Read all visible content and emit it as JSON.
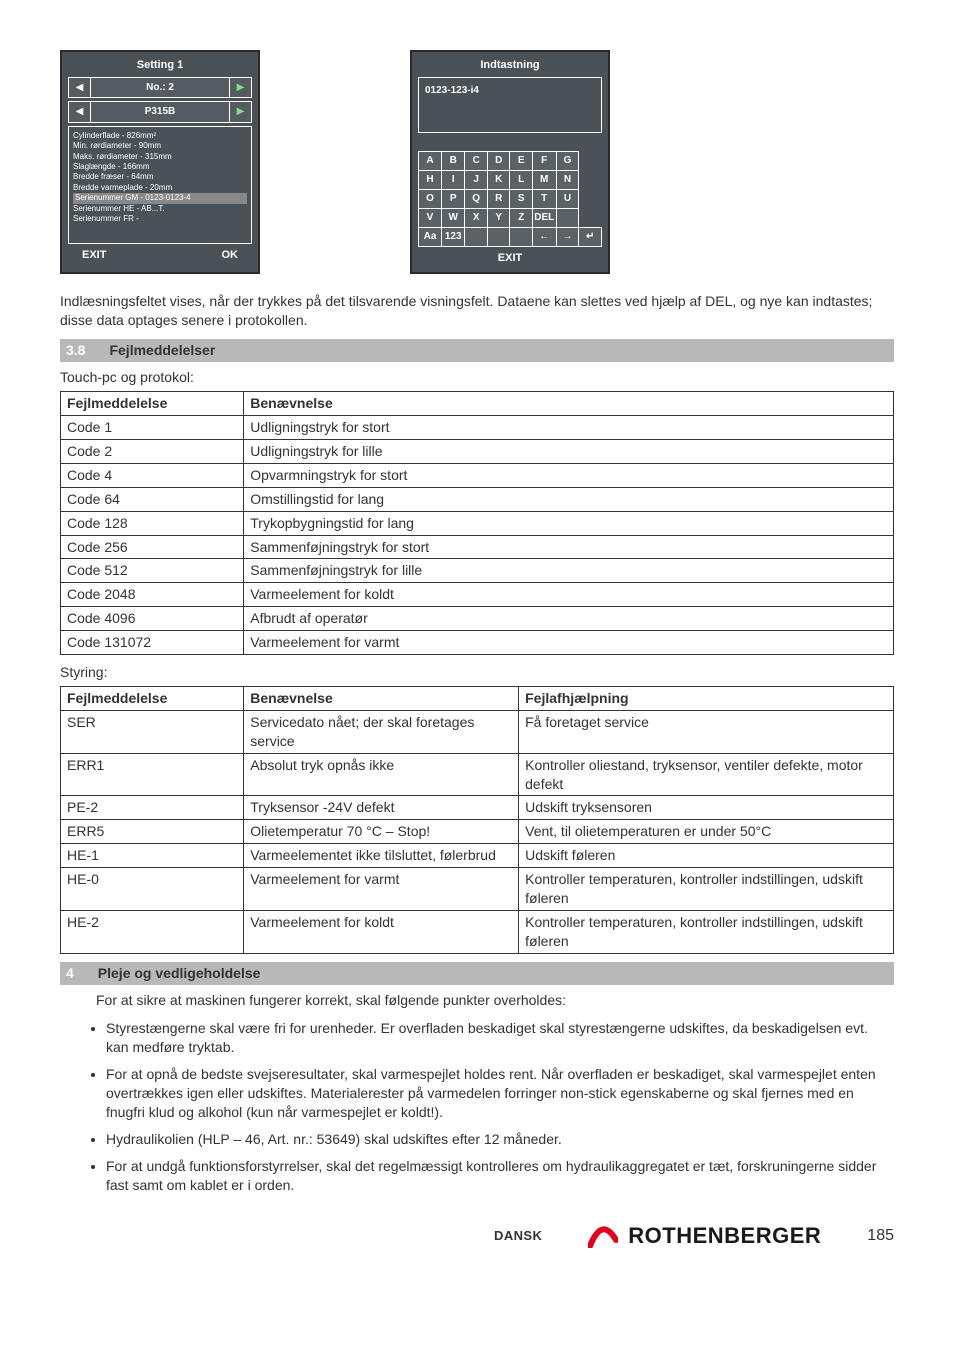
{
  "left_screen": {
    "title": "Setting 1",
    "row1_center": "No.: 2",
    "row2_center": "P315B",
    "info_lines": [
      "Cylinderflade - 826mm²",
      "Min. rørdiameter - 90mm",
      "Maks. rørdiameter - 315mm",
      "Slaglængde - 166mm",
      "Bredde fræser - 64mm",
      "Bredde varmeplade - 20mm"
    ],
    "highlight_line": "Serienummer GM - 0123-0123-4",
    "info_lines2": [
      "Serienummer HE - AB...T.",
      "Serienummer FR -"
    ],
    "footer_left": "EXIT",
    "footer_right": "OK"
  },
  "right_screen": {
    "title": "Indtastning",
    "input_value": "0123-123-i4",
    "keys": [
      [
        "A",
        "B",
        "C",
        "D",
        "E",
        "F",
        "G"
      ],
      [
        "H",
        "I",
        "J",
        "K",
        "L",
        "M",
        "N"
      ],
      [
        "O",
        "P",
        "Q",
        "R",
        "S",
        "T",
        "U"
      ],
      [
        "V",
        "W",
        "X",
        "Y",
        "Z",
        "DEL",
        ""
      ],
      [
        "Aa",
        "123",
        "",
        "",
        "",
        "←",
        "→",
        "↵"
      ]
    ],
    "exit": "EXIT"
  },
  "paragraph_after_screens": "Indlæsningsfeltet vises, når der trykkes på det tilsvarende visningsfelt. Dataene kan slettes ved hjælp af DEL, og nye kan indtastes; disse data optages senere i protokollen.",
  "section_38": {
    "num": "3.8",
    "title": "Fejlmeddelelser"
  },
  "touch_pc_line": "Touch-pc og protokol:",
  "table1": {
    "headers": [
      "Fejlmeddelelse",
      "Benævnelse"
    ],
    "rows": [
      [
        "Code 1",
        "Udligningstryk for stort"
      ],
      [
        "Code 2",
        "Udligningstryk for lille"
      ],
      [
        "Code 4",
        "Opvarmningstryk for stort"
      ],
      [
        "Code 64",
        "Omstillingstid for lang"
      ],
      [
        "Code 128",
        "Trykopbygningstid for lang"
      ],
      [
        "Code 256",
        "Sammenføjningstryk for stort"
      ],
      [
        "Code 512",
        "Sammenføjningstryk for lille"
      ],
      [
        "Code 2048",
        "Varmeelement for koldt"
      ],
      [
        "Code 4096",
        "Afbrudt af operatør"
      ],
      [
        "Code 131072",
        "Varmeelement for varmt"
      ]
    ]
  },
  "styring_line": "Styring:",
  "table2": {
    "headers": [
      "Fejlmeddelelse",
      "Benævnelse",
      "Fejlafhjælpning"
    ],
    "rows": [
      [
        "SER",
        "Servicedato nået; der skal foretages service",
        "Få foretaget service"
      ],
      [
        "ERR1",
        "Absolut tryk opnås ikke",
        "Kontroller oliestand, tryksensor, ventiler defekte, motor defekt"
      ],
      [
        "PE-2",
        "Tryksensor -24V defekt",
        "Udskift tryksensoren"
      ],
      [
        "ERR5",
        "Olietemperatur 70 °C – Stop!",
        "Vent, til olietemperaturen er under 50°C"
      ],
      [
        "HE-1",
        "Varmeelementet ikke tilsluttet, følerbrud",
        "Udskift føleren"
      ],
      [
        "HE-0",
        "Varmeelement for varmt",
        "Kontroller temperaturen, kontroller indstillingen, udskift føleren"
      ],
      [
        "HE-2",
        "Varmeelement for koldt",
        "Kontroller temperaturen, kontroller indstillingen, udskift føleren"
      ]
    ]
  },
  "section_4": {
    "num": "4",
    "title": "Pleje og vedligeholdelse"
  },
  "para4_intro": "For at sikre at maskinen fungerer korrekt, skal følgende punkter overholdes:",
  "bullets": [
    "Styrestængerne skal være fri for urenheder. Er overfladen beskadiget skal styrestængerne udskiftes, da beskadigelsen evt. kan medføre tryktab.",
    "For at opnå de bedste svejseresultater, skal varmespejlet holdes rent. Når overfladen er beskadiget, skal varmespejlet enten overtrækkes igen eller udskiftes. Materialerester på varmedelen forringer non-stick egenskaberne og skal fjernes med en fnugfri klud og alkohol (kun når varmespejlet er koldt!).",
    "Hydraulikolien (HLP – 46, Art. nr.: 53649) skal udskiftes efter 12 måneder.",
    "For at undgå funktionsforstyrrelser, skal det regelmæssigt kontrolleres om hydraulikaggregatet er tæt, forskruningerne sidder fast samt om kablet er i orden."
  ],
  "footer": {
    "lang": "DANSK",
    "brand": "ROTHENBERGER",
    "page": "185"
  },
  "colors": {
    "section_bg": "#b8b8b8",
    "device_bg": "#4a5258",
    "brand_red": "#e2001a"
  }
}
